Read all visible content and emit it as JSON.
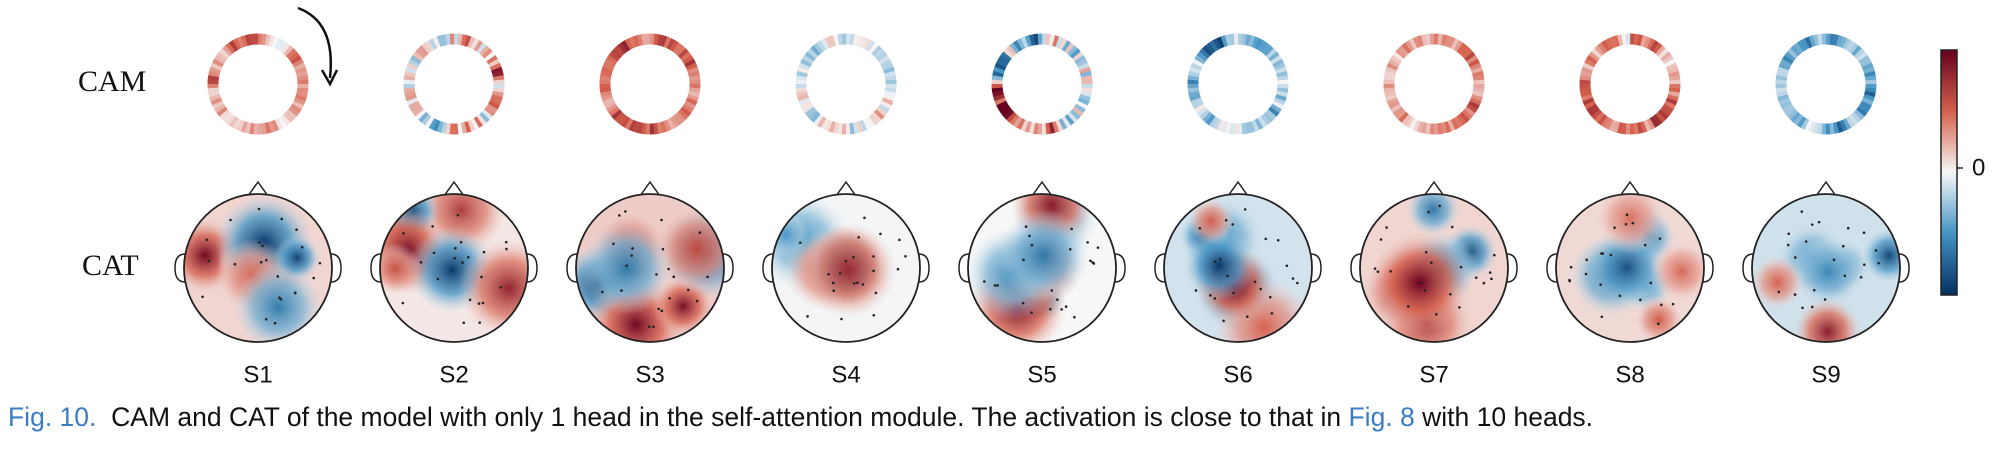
{
  "figure": {
    "row_labels": [
      "CAM",
      "CAT"
    ],
    "subjects": [
      "S1",
      "S2",
      "S3",
      "S4",
      "S5",
      "S6",
      "S7",
      "S8",
      "S9"
    ],
    "colorbar": {
      "ticks": [
        "0"
      ]
    }
  },
  "caption": {
    "label": "Fig. 10.",
    "text": "CAM and CAT of the model with only 1 head in the self-attention module. The activation is close to that in",
    "ref": "Fig. 8",
    "text_end": "with 10 heads."
  }
}
